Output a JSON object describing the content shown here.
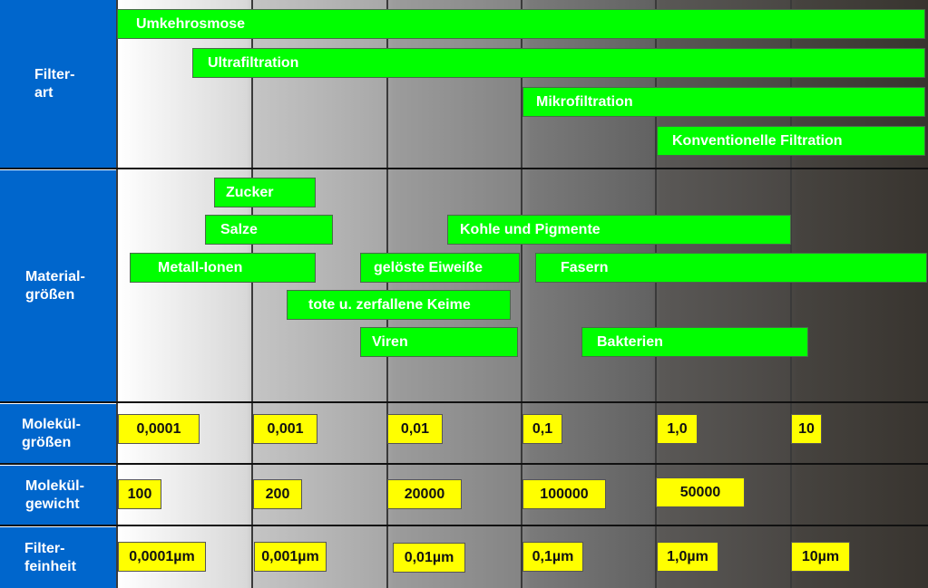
{
  "row_labels": {
    "filterart": "Filter-\nart",
    "materialgroessen": "Material-\ngrößen",
    "molekuelgroessen": "Molekül-\ngrößen",
    "molekuelgewicht": "Molekül-\ngewicht",
    "filterfeinheit": "Filter-\nfeinheit"
  },
  "filter_types": [
    "Umkehrosmose",
    "Ultrafiltration",
    "Mikrofiltration",
    "Konventionelle Filtration"
  ],
  "materials": [
    "Zucker",
    "Salze",
    "Kohle und Pigmente",
    "Metall-Ionen",
    "gelöste Eiweiße",
    "Fasern",
    "tote u. zerfallene Keime",
    "Viren",
    "Bakterien"
  ],
  "molecule_sizes": [
    "0,0001",
    "0,001",
    "0,01",
    "0,1",
    "1,0",
    "10"
  ],
  "molecule_weights": [
    "100",
    "200",
    "20000",
    "100000",
    "50000"
  ],
  "filter_fineness": [
    "0,0001µm",
    "0,001µm",
    "0,01µm",
    "0,1µm",
    "1,0µm",
    "10µm"
  ],
  "colors": {
    "label_bg": "#0066cc",
    "range_bar": "#00ff00",
    "value_box": "#ffff00"
  }
}
